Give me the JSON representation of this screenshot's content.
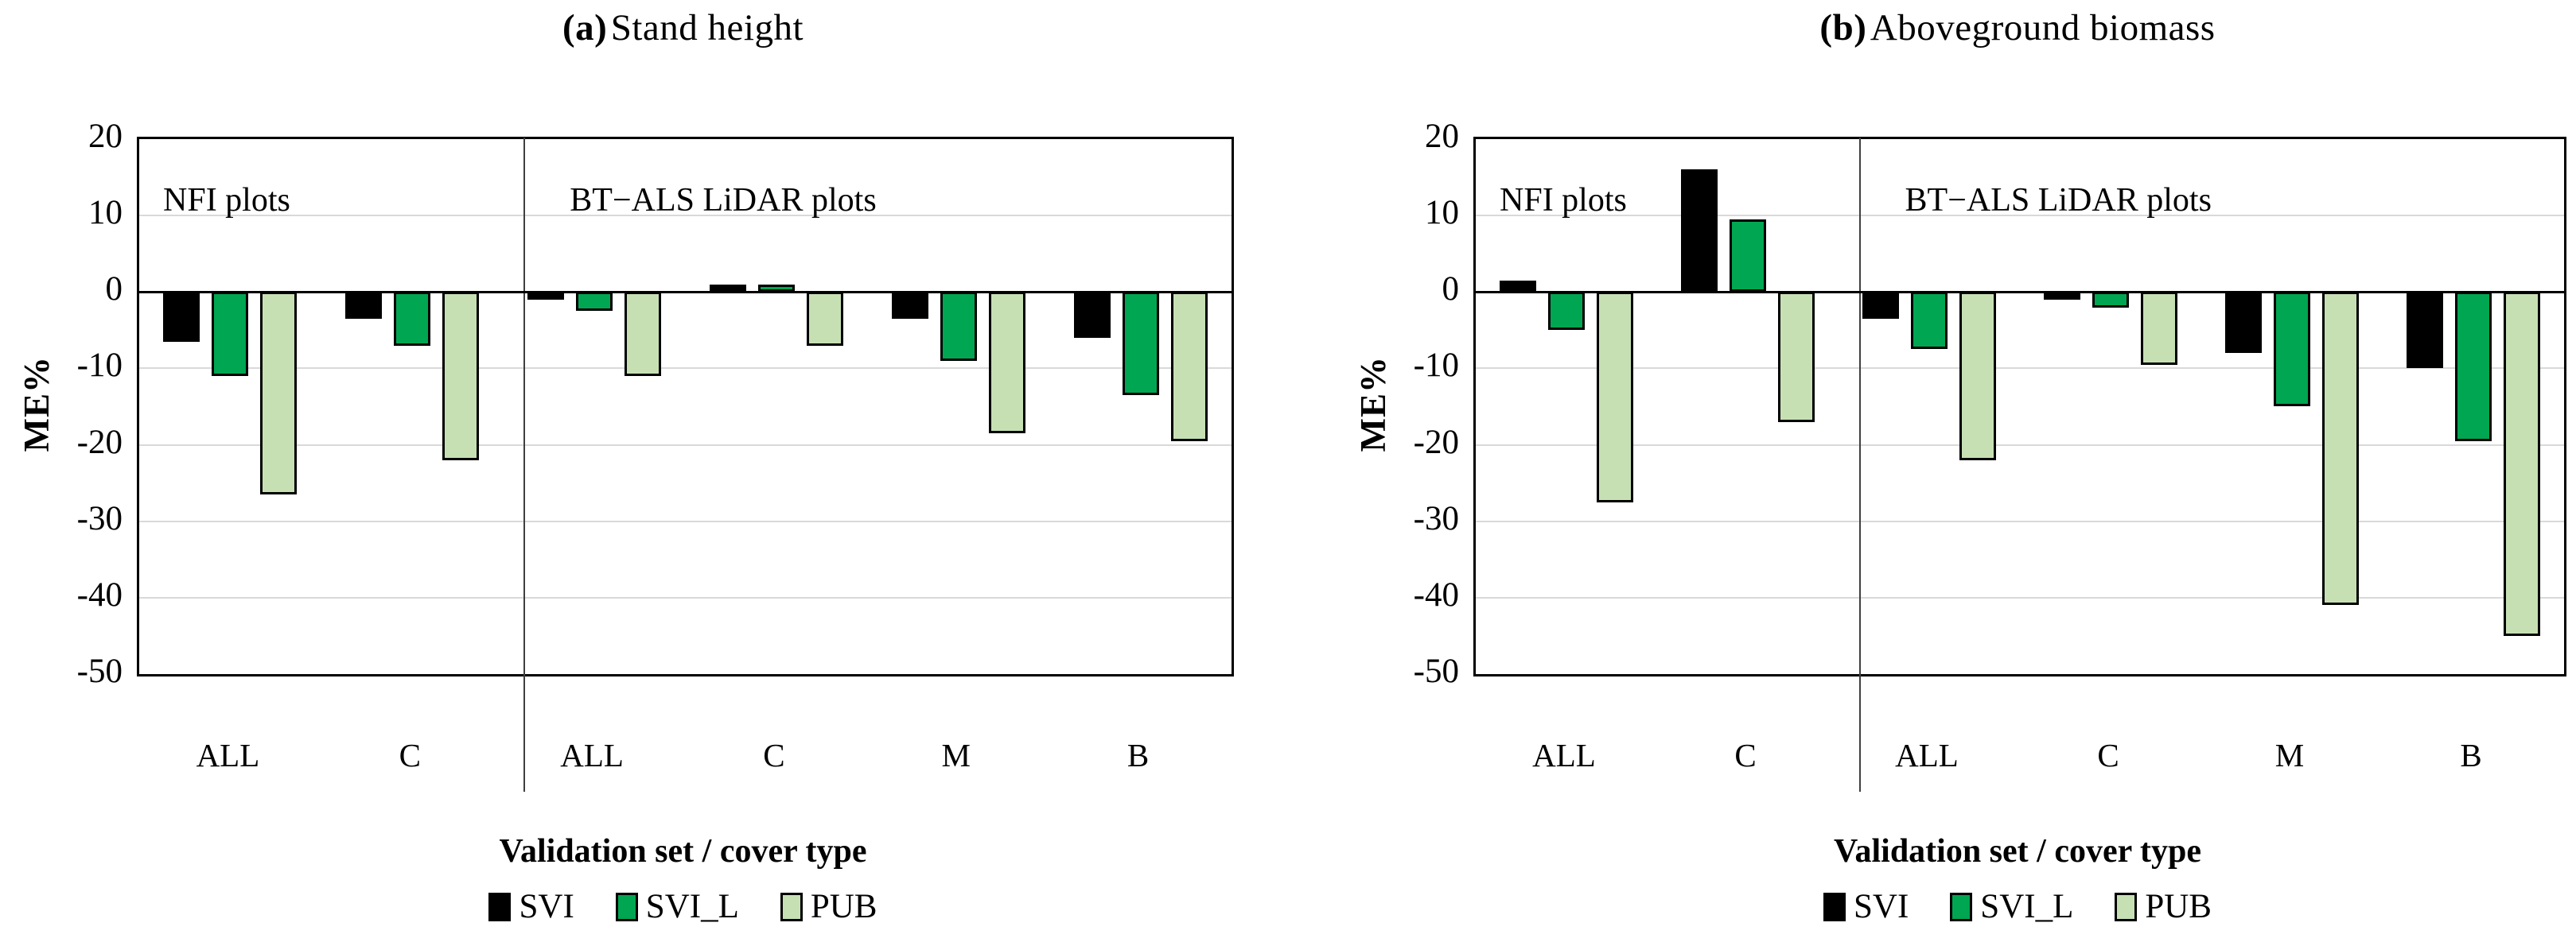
{
  "chart_data": [
    {
      "type": "bar",
      "title_label": "(a)",
      "title_text": "Stand height",
      "ylabel": "ME%",
      "xlabel": "Validation set / cover type",
      "ylim": [
        -50,
        20
      ],
      "ytick_step": 10,
      "grid": "horizontal-light-gray",
      "legend_position": "bottom",
      "categories": [
        "ALL",
        "C",
        "ALL",
        "C",
        "M",
        "B"
      ],
      "sections": [
        {
          "label": "NFI plots",
          "categories": [
            "ALL",
            "C"
          ]
        },
        {
          "label": "BT−ALS LiDAR plots",
          "categories": [
            "ALL",
            "C",
            "M",
            "B"
          ]
        }
      ],
      "series": [
        {
          "name": "SVI",
          "color": "#000000",
          "values": [
            -6.5,
            -3.5,
            -1,
            1,
            -3.5,
            -6
          ]
        },
        {
          "name": "SVI_L",
          "color": "#00A651",
          "values": [
            -11,
            -7,
            -2.5,
            1,
            -9,
            -13.5
          ]
        },
        {
          "name": "PUB",
          "color": "#C6E0B4",
          "values": [
            -26.5,
            -22,
            -11,
            -7,
            -18.5,
            -19.5
          ]
        }
      ]
    },
    {
      "type": "bar",
      "title_label": "(b)",
      "title_text": "Aboveground biomass",
      "ylabel": "ME%",
      "xlabel": "Validation set / cover type",
      "ylim": [
        -50,
        20
      ],
      "ytick_step": 10,
      "grid": "horizontal-light-gray",
      "legend_position": "bottom",
      "categories": [
        "ALL",
        "C",
        "ALL",
        "C",
        "M",
        "B"
      ],
      "sections": [
        {
          "label": "NFI plots",
          "categories": [
            "ALL",
            "C"
          ]
        },
        {
          "label": "BT−ALS LiDAR plots",
          "categories": [
            "ALL",
            "C",
            "M",
            "B"
          ]
        }
      ],
      "series": [
        {
          "name": "SVI",
          "color": "#000000",
          "values": [
            1.5,
            16,
            -3.5,
            -1,
            -8,
            -10
          ]
        },
        {
          "name": "SVI_L",
          "color": "#00A651",
          "values": [
            -5,
            9.5,
            -7.5,
            -2,
            -15,
            -19.5
          ]
        },
        {
          "name": "PUB",
          "color": "#C6E0B4",
          "values": [
            -27.5,
            -17,
            -22,
            -9.5,
            -41,
            -45
          ]
        }
      ]
    }
  ],
  "style_colors": {
    "gridline": "#D9D9D9",
    "axis": "#000000",
    "section_divider": "#3F3F3F",
    "background": "#FFFFFF"
  }
}
